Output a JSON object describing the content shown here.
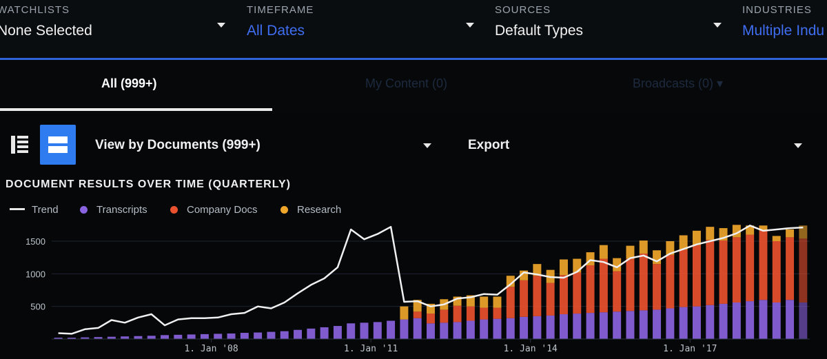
{
  "filters": [
    {
      "label": "WATCHLISTS",
      "value": "None Selected",
      "value_color": "#f2f2f2"
    },
    {
      "label": "TIMEFRAME",
      "value": "All Dates",
      "value_color": "#3f6ef2"
    },
    {
      "label": "SOURCES",
      "value": "Default Types",
      "value_color": "#f2f2f2"
    },
    {
      "label": "INDUSTRIES",
      "value": "Multiple Indu",
      "value_color": "#3f6ef2"
    }
  ],
  "tabs": [
    {
      "label": "All (999+)",
      "active": true
    },
    {
      "label": "My Content (0)",
      "active": false
    },
    {
      "label": "Broadcasts (0) ▾",
      "active": false
    }
  ],
  "toolbar": {
    "view_by_label": "View by Documents (999+)",
    "export_label": "Export"
  },
  "chart_data": {
    "type": "bar",
    "title": "DOCUMENT RESULTS OVER TIME (QUARTERLY)",
    "legend": [
      "Trend",
      "Transcripts",
      "Company Docs",
      "Research"
    ],
    "legend_colors": {
      "Trend": "#e8e8e8",
      "Transcripts": "#8a63e0",
      "Company Docs": "#e9512f",
      "Research": "#f0a62a"
    },
    "y_ticks": [
      500,
      1000,
      1500
    ],
    "ylim": [
      0,
      1800
    ],
    "x_tick_labels": [
      "1. Jan '08",
      "1. Jan '11",
      "1. Jan '14",
      "1. Jan '17"
    ],
    "x_tick_positions_quarter_index": [
      12,
      24,
      36,
      48
    ],
    "stacked_series": [
      {
        "name": "Transcripts",
        "color": "#8a63e0"
      },
      {
        "name": "Company Docs",
        "color": "#e9512f"
      },
      {
        "name": "Research",
        "color": "#f0a62a"
      }
    ],
    "quarters": [
      {
        "t": 20,
        "c": 0,
        "r": 0,
        "trend": 90
      },
      {
        "t": 20,
        "c": 0,
        "r": 0,
        "trend": 80
      },
      {
        "t": 25,
        "c": 0,
        "r": 0,
        "trend": 150
      },
      {
        "t": 30,
        "c": 0,
        "r": 0,
        "trend": 170
      },
      {
        "t": 35,
        "c": 0,
        "r": 0,
        "trend": 290
      },
      {
        "t": 40,
        "c": 0,
        "r": 0,
        "trend": 250
      },
      {
        "t": 45,
        "c": 0,
        "r": 0,
        "trend": 330
      },
      {
        "t": 50,
        "c": 0,
        "r": 0,
        "trend": 380
      },
      {
        "t": 60,
        "c": 0,
        "r": 0,
        "trend": 210
      },
      {
        "t": 65,
        "c": 0,
        "r": 0,
        "trend": 300
      },
      {
        "t": 70,
        "c": 0,
        "r": 0,
        "trend": 320
      },
      {
        "t": 75,
        "c": 0,
        "r": 0,
        "trend": 320
      },
      {
        "t": 80,
        "c": 0,
        "r": 0,
        "trend": 330
      },
      {
        "t": 85,
        "c": 0,
        "r": 0,
        "trend": 380
      },
      {
        "t": 95,
        "c": 0,
        "r": 0,
        "trend": 400
      },
      {
        "t": 100,
        "c": 0,
        "r": 0,
        "trend": 500
      },
      {
        "t": 110,
        "c": 0,
        "r": 0,
        "trend": 470
      },
      {
        "t": 120,
        "c": 0,
        "r": 0,
        "trend": 560
      },
      {
        "t": 140,
        "c": 0,
        "r": 0,
        "trend": 700
      },
      {
        "t": 160,
        "c": 0,
        "r": 0,
        "trend": 830
      },
      {
        "t": 180,
        "c": 0,
        "r": 0,
        "trend": 930
      },
      {
        "t": 200,
        "c": 0,
        "r": 0,
        "trend": 1100
      },
      {
        "t": 240,
        "c": 0,
        "r": 0,
        "trend": 1680
      },
      {
        "t": 250,
        "c": 0,
        "r": 0,
        "trend": 1530
      },
      {
        "t": 260,
        "c": 0,
        "r": 0,
        "trend": 1610
      },
      {
        "t": 280,
        "c": 0,
        "r": 0,
        "trend": 1720
      },
      {
        "t": 300,
        "c": 0,
        "r": 200,
        "trend": 570
      },
      {
        "t": 320,
        "c": 100,
        "r": 180,
        "trend": 580
      },
      {
        "t": 240,
        "c": 150,
        "r": 150,
        "trend": 500
      },
      {
        "t": 250,
        "c": 200,
        "r": 160,
        "trend": 530
      },
      {
        "t": 260,
        "c": 250,
        "r": 140,
        "trend": 620
      },
      {
        "t": 280,
        "c": 220,
        "r": 170,
        "trend": 640
      },
      {
        "t": 300,
        "c": 180,
        "r": 170,
        "trend": 690
      },
      {
        "t": 310,
        "c": 170,
        "r": 170,
        "trend": 680
      },
      {
        "t": 320,
        "c": 480,
        "r": 170,
        "trend": 840
      },
      {
        "t": 340,
        "c": 560,
        "r": 150,
        "trend": 1020
      },
      {
        "t": 350,
        "c": 620,
        "r": 180,
        "trend": 990
      },
      {
        "t": 360,
        "c": 500,
        "r": 200,
        "trend": 950
      },
      {
        "t": 380,
        "c": 600,
        "r": 240,
        "trend": 940
      },
      {
        "t": 390,
        "c": 630,
        "r": 210,
        "trend": 1030
      },
      {
        "t": 400,
        "c": 730,
        "r": 200,
        "trend": 1210
      },
      {
        "t": 410,
        "c": 820,
        "r": 210,
        "trend": 1180
      },
      {
        "t": 420,
        "c": 620,
        "r": 200,
        "trend": 1100
      },
      {
        "t": 430,
        "c": 800,
        "r": 200,
        "trend": 1240
      },
      {
        "t": 440,
        "c": 870,
        "r": 200,
        "trend": 1280
      },
      {
        "t": 450,
        "c": 700,
        "r": 210,
        "trend": 1190
      },
      {
        "t": 470,
        "c": 820,
        "r": 210,
        "trend": 1310
      },
      {
        "t": 490,
        "c": 880,
        "r": 220,
        "trend": 1380
      },
      {
        "t": 500,
        "c": 940,
        "r": 220,
        "trend": 1450
      },
      {
        "t": 520,
        "c": 1000,
        "r": 200,
        "trend": 1500
      },
      {
        "t": 540,
        "c": 970,
        "r": 190,
        "trend": 1550
      },
      {
        "t": 560,
        "c": 1000,
        "r": 190,
        "trend": 1620
      },
      {
        "t": 580,
        "c": 1020,
        "r": 140,
        "trend": 1740
      },
      {
        "t": 600,
        "c": 1060,
        "r": 80,
        "trend": 1660
      },
      {
        "t": 560,
        "c": 940,
        "r": 80,
        "trend": 1680
      },
      {
        "t": 600,
        "c": 960,
        "r": 120,
        "trend": 1700
      },
      {
        "t": 560,
        "c": 980,
        "r": 200,
        "trend": 1710
      }
    ]
  }
}
